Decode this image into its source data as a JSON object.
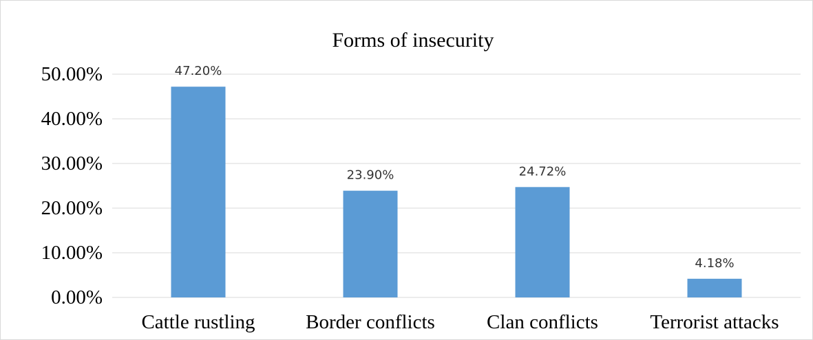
{
  "chart_data": {
    "type": "bar",
    "title": "Forms of insecurity",
    "categories": [
      "Cattle rustling",
      "Border conflicts",
      "Clan conflicts",
      "Terrorist attacks"
    ],
    "values": [
      47.2,
      23.9,
      24.72,
      4.18
    ],
    "data_labels": [
      "47.20%",
      "23.90%",
      "24.72%",
      "4.18%"
    ],
    "yticks": [
      0,
      10,
      20,
      30,
      40,
      50
    ],
    "ytick_labels": [
      "0.00%",
      "10.00%",
      "20.00%",
      "30.00%",
      "40.00%",
      "50.00%"
    ],
    "ylim": [
      0,
      50
    ],
    "xlabel": "",
    "ylabel": "",
    "grid": true,
    "bar_color": "#5b9bd5",
    "grid_color": "#d9d9d9"
  }
}
